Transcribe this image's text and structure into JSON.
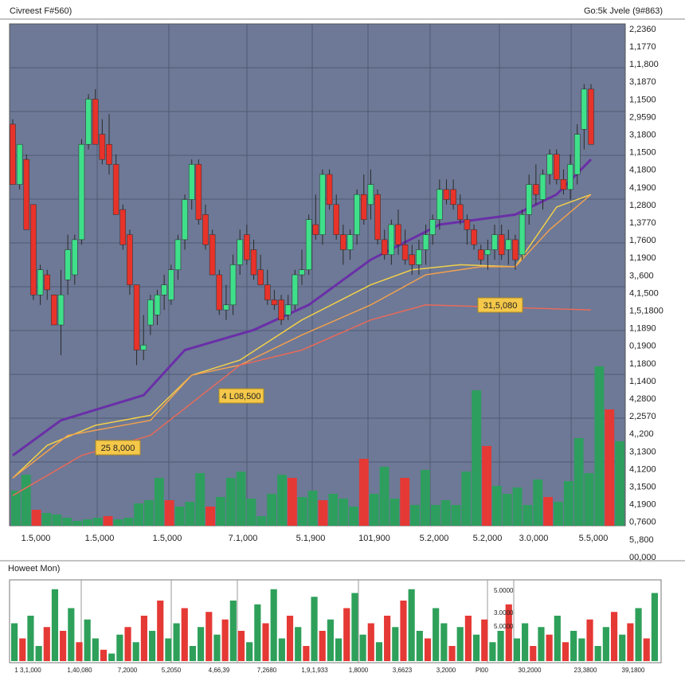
{
  "header": {
    "left": "Civreest F#560)",
    "right": "Go:5k Jvele (9#863)"
  },
  "price_labels": [
    "2,2360",
    "1,1770",
    "1,1,800",
    "3,1870",
    "1,1500",
    "2,9590",
    "3,1800",
    "1,1500",
    "4,1800",
    "4,1900",
    "1,2800",
    "1,3770",
    "1,7600",
    "1,1900",
    "3,,600",
    "4,1,500",
    "1,5,1800",
    "1,1890",
    "0,1900",
    "1,1800",
    "1,1400",
    "4,2800",
    "2,2570",
    "4,,200",
    "3,1300",
    "4,1200",
    "3,1500",
    "4,1900",
    "0,7600",
    "5,,800",
    "00,000"
  ],
  "time_labels": [
    "1.5,000",
    "1.5,000",
    "1.5,000",
    "7.1,000",
    "5.1,900",
    "101,900",
    "5.2,000",
    "5.2,000",
    "3.0,000",
    "5.5,000"
  ],
  "annotations": [
    "31,5,080",
    "4 L08,500",
    "25 8,000"
  ],
  "chart_data": {
    "type": "candlestick",
    "ylim": [
      0,
      100
    ],
    "up_color": "#3fe08a",
    "down_color": "#e8332a",
    "open": [
      80,
      68,
      73,
      64,
      46,
      50,
      46,
      40,
      49,
      50,
      57,
      76,
      85,
      78,
      76,
      72,
      63,
      58,
      48,
      35,
      40,
      42,
      46,
      45,
      51,
      57,
      65,
      72,
      62,
      58,
      50,
      43,
      44,
      52,
      58,
      55,
      51,
      48,
      45,
      45,
      42,
      44,
      50,
      51,
      60,
      58,
      70,
      64,
      58,
      55,
      58,
      66,
      64,
      66,
      57,
      54,
      60,
      56,
      54,
      52,
      55,
      58,
      61,
      67,
      67,
      64,
      61,
      59,
      55,
      54,
      55,
      58,
      55,
      57,
      54,
      62,
      68,
      65,
      70,
      74,
      69,
      67,
      70,
      79,
      87
    ],
    "high": [
      81,
      76,
      74,
      64,
      52,
      51,
      46,
      51,
      58,
      58,
      77,
      86,
      87,
      81,
      82,
      74,
      64,
      59,
      48,
      42,
      46,
      47,
      50,
      52,
      58,
      66,
      73,
      73,
      64,
      59,
      51,
      48,
      54,
      59,
      60,
      57,
      54,
      51,
      47,
      46,
      46,
      51,
      55,
      62,
      66,
      71,
      71,
      66,
      60,
      59,
      67,
      70,
      71,
      67,
      59,
      61,
      63,
      59,
      56,
      57,
      60,
      62,
      69,
      69,
      69,
      66,
      62,
      60,
      56,
      57,
      60,
      60,
      59,
      58,
      63,
      70,
      72,
      71,
      75,
      75,
      71,
      74,
      80,
      88,
      88
    ],
    "low": [
      68,
      67,
      59,
      45,
      44,
      45,
      40,
      34,
      46,
      48,
      56,
      75,
      76,
      72,
      70,
      62,
      55,
      46,
      32,
      33,
      38,
      40,
      43,
      44,
      49,
      55,
      63,
      60,
      55,
      50,
      42,
      41,
      42,
      50,
      52,
      49,
      48,
      44,
      43,
      40,
      41,
      43,
      48,
      50,
      57,
      56,
      63,
      57,
      52,
      53,
      56,
      60,
      61,
      56,
      53,
      52,
      54,
      52,
      50,
      50,
      52,
      56,
      59,
      64,
      63,
      60,
      56,
      55,
      52,
      51,
      53,
      53,
      52,
      51,
      53,
      60,
      64,
      63,
      68,
      68,
      66,
      65,
      68,
      75,
      76
    ],
    "close": [
      68,
      76,
      59,
      46,
      51,
      47,
      40,
      46,
      55,
      57,
      76,
      85,
      76,
      73,
      72,
      62,
      56,
      48,
      35,
      36,
      45,
      46,
      48,
      51,
      57,
      65,
      72,
      61,
      56,
      50,
      43,
      44,
      52,
      57,
      53,
      50,
      48,
      45,
      44,
      41,
      44,
      50,
      51,
      61,
      58,
      70,
      64,
      58,
      55,
      58,
      66,
      61,
      68,
      57,
      54,
      60,
      56,
      53,
      52,
      55,
      58,
      61,
      67,
      65,
      64,
      61,
      59,
      56,
      53,
      55,
      58,
      54,
      57,
      53,
      62,
      68,
      66,
      70,
      74,
      69,
      67,
      72,
      78,
      87,
      76
    ],
    "indicators": [
      {
        "color": "#6a2fa8",
        "x": [
          0,
          7,
          19,
          25,
          35,
          43,
          52,
          62,
          73,
          79,
          84
        ],
        "values": [
          14,
          21,
          26,
          35,
          39,
          44,
          53,
          60,
          62,
          66,
          73
        ]
      },
      {
        "color": "#f2d04a",
        "x": [
          0,
          5,
          12,
          20,
          26,
          33,
          42,
          52,
          58,
          65,
          73,
          79,
          84
        ],
        "values": [
          9.5,
          16,
          20,
          22,
          30,
          33,
          41,
          48,
          51,
          52,
          51.6,
          63.5,
          66
        ]
      },
      {
        "color": "#f0a050",
        "x": [
          0,
          8,
          20,
          26,
          33,
          42,
          52,
          60,
          68,
          73,
          78,
          84
        ],
        "values": [
          9.5,
          18,
          21,
          30,
          32,
          38,
          44,
          50,
          51.6,
          51.6,
          59,
          66
        ]
      },
      {
        "color": "#e86a5a",
        "x": [
          0,
          10,
          20,
          33,
          42,
          52,
          60,
          84
        ],
        "values": [
          6,
          14,
          18,
          32,
          35,
          41,
          44,
          43
        ]
      }
    ],
    "volume": {
      "ylim": [
        0,
        110
      ],
      "values": [
        22,
        32,
        10,
        8,
        7,
        5,
        3,
        4,
        5,
        6,
        4,
        5,
        14,
        16,
        30,
        16,
        12,
        15,
        33,
        12,
        18,
        30,
        34,
        17,
        6,
        20,
        32,
        30,
        18,
        22,
        16,
        20,
        17,
        12,
        42,
        20,
        37,
        17,
        30,
        13,
        35,
        13,
        16,
        13,
        34,
        85,
        50,
        25,
        20,
        24,
        13,
        29,
        18,
        15,
        28,
        55,
        33,
        100,
        73,
        53
      ],
      "colors": [
        "#2e9e5e",
        "#2e9e5e",
        "#e53935",
        "#2e9e5e",
        "#2e9e5e",
        "#2e9e5e",
        "#2e9e5e",
        "#2e9e5e",
        "#2e9e5e",
        "#e53935",
        "#2e9e5e",
        "#2e9e5e",
        "#2e9e5e",
        "#2e9e5e",
        "#2e9e5e",
        "#e53935",
        "#2e9e5e",
        "#2e9e5e",
        "#2e9e5e",
        "#e53935",
        "#2e9e5e",
        "#2e9e5e",
        "#2e9e5e",
        "#2e9e5e",
        "#2e9e5e",
        "#2e9e5e",
        "#2e9e5e",
        "#e53935",
        "#2e9e5e",
        "#2e9e5e",
        "#e53935",
        "#2e9e5e",
        "#2e9e5e",
        "#2e9e5e",
        "#e53935",
        "#2e9e5e",
        "#2e9e5e",
        "#2e9e5e",
        "#e53935",
        "#2e9e5e",
        "#2e9e5e",
        "#2e9e5e",
        "#2e9e5e",
        "#2e9e5e",
        "#2e9e5e",
        "#2e9e5e",
        "#e53935",
        "#2e9e5e",
        "#2e9e5e",
        "#2e9e5e",
        "#2e9e5e",
        "#2e9e5e",
        "#e53935",
        "#2e9e5e",
        "#2e9e5e",
        "#2e9e5e",
        "#2e9e5e",
        "#2e9e5e",
        "#e53935",
        "#2e9e5e"
      ]
    }
  },
  "lower_panel": {
    "title": "Howeet Mon)",
    "ylim": [
      0,
      100
    ],
    "values": [
      50,
      30,
      60,
      20,
      45,
      95,
      40,
      70,
      25,
      55,
      30,
      15,
      10,
      35,
      45,
      25,
      60,
      40,
      80,
      30,
      50,
      70,
      20,
      45,
      65,
      35,
      55,
      80,
      40,
      25,
      75,
      50,
      95,
      30,
      60,
      45,
      20,
      85,
      40,
      55,
      30,
      70,
      90,
      35,
      50,
      25,
      60,
      45,
      80,
      95,
      40,
      30,
      70,
      50,
      20,
      45,
      60,
      35,
      55,
      25,
      40,
      75,
      30,
      50,
      20,
      45,
      35,
      60,
      25,
      40,
      30,
      55,
      20,
      45,
      65,
      35,
      50,
      70,
      30,
      90
    ],
    "colors": [
      "#2ea05a",
      "#e53935",
      "#2ea05a",
      "#2ea05a",
      "#e53935",
      "#2ea05a",
      "#e53935",
      "#2ea05a",
      "#e53935",
      "#2ea05a",
      "#2ea05a",
      "#e53935",
      "#2ea05a",
      "#2ea05a",
      "#e53935",
      "#2ea05a",
      "#e53935",
      "#2ea05a",
      "#e53935",
      "#2ea05a",
      "#2ea05a",
      "#e53935",
      "#2ea05a",
      "#2ea05a",
      "#e53935",
      "#2ea05a",
      "#e53935",
      "#2ea05a",
      "#e53935",
      "#2ea05a",
      "#2ea05a",
      "#e53935",
      "#2ea05a",
      "#2ea05a",
      "#e53935",
      "#2ea05a",
      "#e53935",
      "#2ea05a",
      "#e53935",
      "#2ea05a",
      "#2ea05a",
      "#e53935",
      "#2ea05a",
      "#2ea05a",
      "#e53935",
      "#2ea05a",
      "#e53935",
      "#2ea05a",
      "#e53935",
      "#2ea05a",
      "#2ea05a",
      "#e53935",
      "#2ea05a",
      "#2ea05a",
      "#e53935",
      "#2ea05a",
      "#e53935",
      "#2ea05a",
      "#e53935",
      "#2ea05a",
      "#2ea05a",
      "#e53935",
      "#2ea05a",
      "#2ea05a",
      "#e53935",
      "#2ea05a",
      "#e53935",
      "#2ea05a",
      "#e53935",
      "#2ea05a",
      "#2ea05a",
      "#e53935",
      "#2ea05a",
      "#2ea05a",
      "#e53935",
      "#2ea05a",
      "#e53935",
      "#2ea05a",
      "#e53935",
      "#2ea05a"
    ],
    "labels": [
      "1 3,1,000",
      "1,40,080",
      "7,2000",
      "5,2050",
      "4,66,39",
      "7,2680",
      "1,9,1,933",
      "1,8000",
      "3,6623",
      "3,2000",
      "Pl00",
      "30,2000",
      "23,3800",
      "39,1800"
    ],
    "side_labels": [
      "5.0000",
      "3.0000",
      "5.0000"
    ]
  }
}
